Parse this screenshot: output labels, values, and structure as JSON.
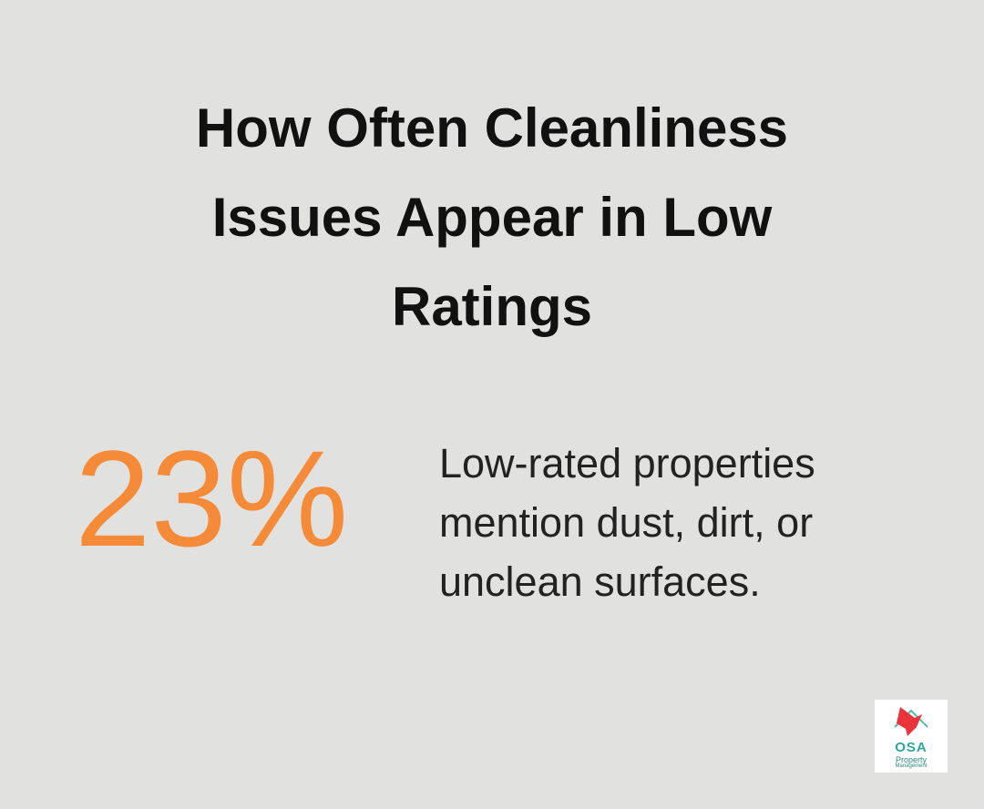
{
  "title": "How Often Cleanliness Issues Appear in Low Ratings",
  "stat": {
    "value": "23%",
    "description": "Low-rated properties mention dust, dirt, or unclean surfaces."
  },
  "logo": {
    "name": "OSA",
    "line1": "Property",
    "line2": "Management"
  }
}
